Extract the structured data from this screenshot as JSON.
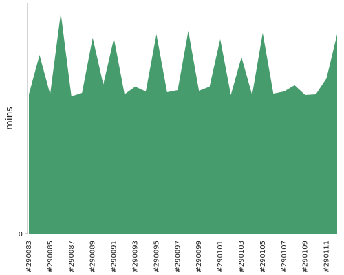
{
  "chart_data": {
    "type": "area",
    "y_label": "mins",
    "categories": [
      "#290083",
      null,
      "#290085",
      null,
      "#290087",
      null,
      "#290089",
      null,
      "#290091",
      null,
      "#290093",
      null,
      "#290095",
      null,
      "#290097",
      null,
      "#290099",
      null,
      "#290101",
      null,
      "#290103",
      null,
      "#290105",
      null,
      "#290107",
      null,
      "#290109",
      null,
      "#290111",
      null
    ],
    "values": [
      60.6,
      77.6,
      60.6,
      95.8,
      59.7,
      61.2,
      85.1,
      64.8,
      84.8,
      60.6,
      63.9,
      61.8,
      86.6,
      61.5,
      62.4,
      88.1,
      62.1,
      63.9,
      84.5,
      60.3,
      76.7,
      60.3,
      87.2,
      60.9,
      61.8,
      64.5,
      60.3,
      60.6,
      67.5,
      86.6
    ],
    "color": "#469c6c",
    "ylim": [
      0,
      100
    ],
    "yticks": [
      0
    ]
  }
}
